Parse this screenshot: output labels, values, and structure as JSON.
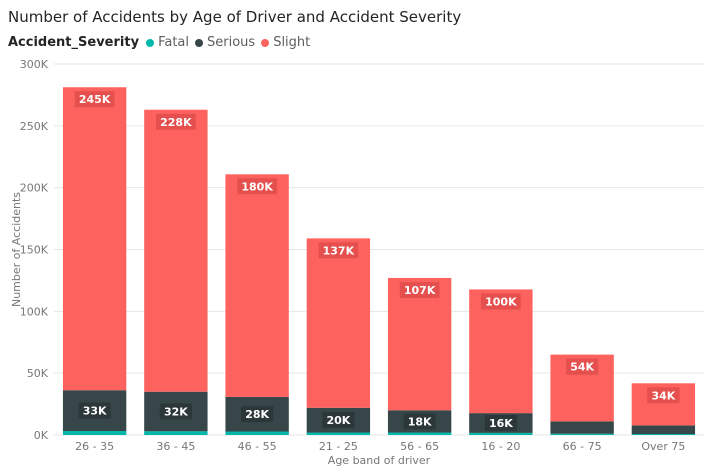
{
  "chart_data": {
    "type": "bar",
    "stacked": true,
    "title": "Number of Accidents by Age of Driver and Accident Severity",
    "legend_title": "Accident_Severity",
    "legend_position": "top-left",
    "xlabel": "Age band of driver",
    "ylabel": "Number of Accidents",
    "ylim": [
      0,
      300000
    ],
    "yticks": [
      0,
      50000,
      100000,
      150000,
      200000,
      250000,
      300000
    ],
    "ytick_labels": [
      "0K",
      "50K",
      "100K",
      "150K",
      "200K",
      "250K",
      "300K"
    ],
    "grid": true,
    "categories": [
      "26 - 35",
      "36 - 45",
      "46 - 55",
      "21 - 25",
      "56 - 65",
      "16 - 20",
      "66 - 75",
      "Over 75"
    ],
    "series": [
      {
        "name": "Fatal",
        "color": "#01b8aa",
        "values": [
          3200,
          3000,
          2800,
          2000,
          2000,
          1700,
          1000,
          800
        ],
        "labels": [
          "",
          "",
          "",
          "",
          "",
          "",
          "",
          ""
        ]
      },
      {
        "name": "Serious",
        "color": "#374649",
        "values": [
          33000,
          32000,
          28000,
          20000,
          18000,
          16000,
          10000,
          7000
        ],
        "labels": [
          "33K",
          "32K",
          "28K",
          "20K",
          "18K",
          "16K",
          "",
          ""
        ]
      },
      {
        "name": "Slight",
        "color": "#fd625e",
        "values": [
          245000,
          228000,
          180000,
          137000,
          107000,
          100000,
          54000,
          34000
        ],
        "labels": [
          "245K",
          "228K",
          "180K",
          "137K",
          "107K",
          "100K",
          "54K",
          "34K"
        ]
      }
    ]
  }
}
